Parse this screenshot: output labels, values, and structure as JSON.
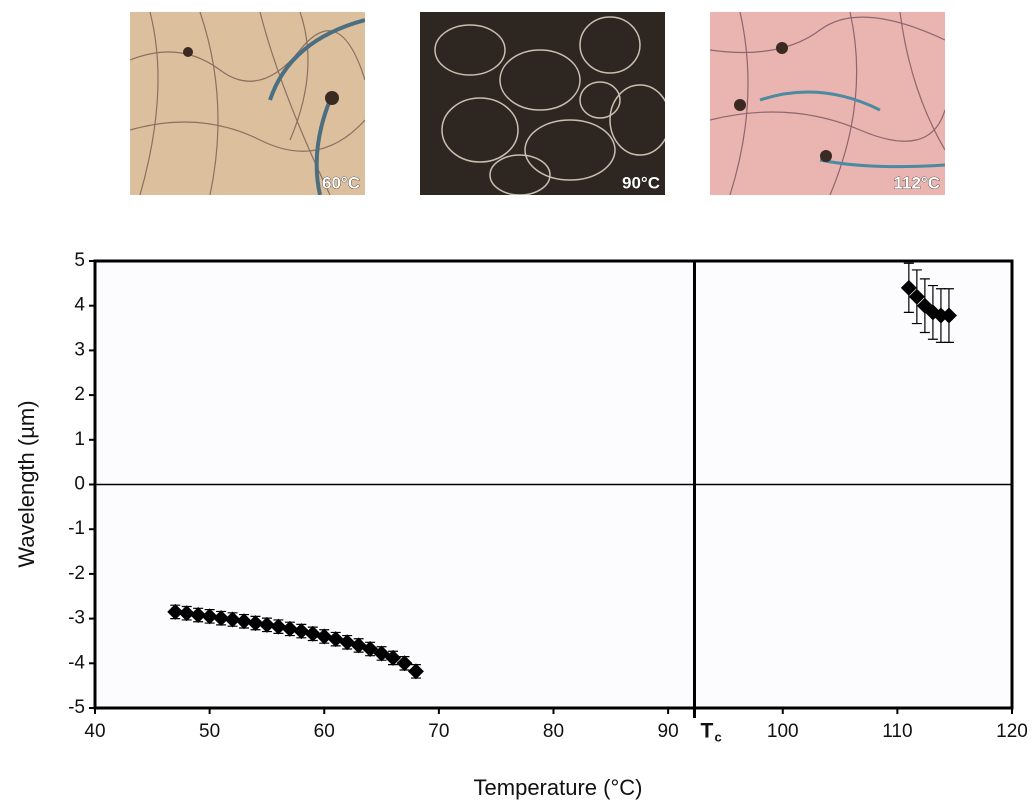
{
  "chart_data": {
    "type": "scatter",
    "micrograph_labels": [
      "60°C",
      "90°C",
      "112°C"
    ],
    "x_label": "Temperature (°C)",
    "y_label": "Wavelength (µm)",
    "xlim": [
      40,
      120
    ],
    "ylim": [
      -5,
      5
    ],
    "xticks": [
      40,
      50,
      60,
      70,
      80,
      90,
      100,
      110,
      120
    ],
    "yticks": [
      -5,
      -4,
      -3,
      -2,
      -1,
      0,
      1,
      2,
      3,
      4,
      5
    ],
    "tc_line": {
      "x": 92.3,
      "label": "T",
      "subscript": "c"
    },
    "marker": "diamond",
    "series": [
      {
        "color": "#000000",
        "x": [
          47,
          48,
          49,
          50,
          51,
          52,
          53,
          54,
          55,
          56,
          57,
          58,
          59,
          60,
          61,
          62,
          63,
          64,
          65,
          66,
          67,
          68
        ],
        "values": [
          -2.85,
          -2.88,
          -2.92,
          -2.95,
          -2.99,
          -3.02,
          -3.06,
          -3.1,
          -3.14,
          -3.18,
          -3.23,
          -3.28,
          -3.34,
          -3.4,
          -3.46,
          -3.53,
          -3.6,
          -3.68,
          -3.78,
          -3.88,
          -4.0,
          -4.18
        ],
        "errors": [
          0.15,
          0.15,
          0.15,
          0.15,
          0.15,
          0.15,
          0.15,
          0.15,
          0.15,
          0.15,
          0.15,
          0.15,
          0.15,
          0.15,
          0.15,
          0.15,
          0.15,
          0.15,
          0.15,
          0.15,
          0.15,
          0.15
        ]
      },
      {
        "color": "#000000",
        "x": [
          111,
          111.7,
          112.4,
          113.1,
          113.8,
          114.5
        ],
        "values": [
          4.4,
          4.2,
          4.0,
          3.85,
          3.78,
          3.78
        ],
        "errors": [
          0.55,
          0.6,
          0.6,
          0.6,
          0.6,
          0.6
        ]
      }
    ]
  }
}
